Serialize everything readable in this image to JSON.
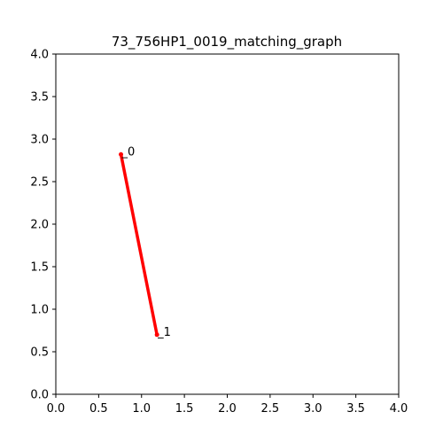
{
  "chart_data": {
    "type": "line",
    "title": "73_756HP1_0019_matching_graph",
    "xlabel": "",
    "ylabel": "",
    "xlim": [
      0.0,
      4.0
    ],
    "ylim": [
      0.0,
      4.0
    ],
    "x_ticks": [
      "0.0",
      "0.5",
      "1.0",
      "1.5",
      "2.0",
      "2.5",
      "3.0",
      "3.5",
      "4.0"
    ],
    "y_ticks": [
      "0.0",
      "0.5",
      "1.0",
      "1.5",
      "2.0",
      "2.5",
      "3.0",
      "3.5",
      "4.0"
    ],
    "grid": false,
    "nodes": [
      {
        "label": "_0",
        "x": 0.76,
        "y": 2.82
      },
      {
        "label": "_1",
        "x": 1.18,
        "y": 0.7
      }
    ],
    "edges": [
      {
        "from": 0,
        "to": 1,
        "color": "#ff0000"
      }
    ],
    "colors": {
      "edge": "#ff0000",
      "axis": "#000000"
    }
  }
}
